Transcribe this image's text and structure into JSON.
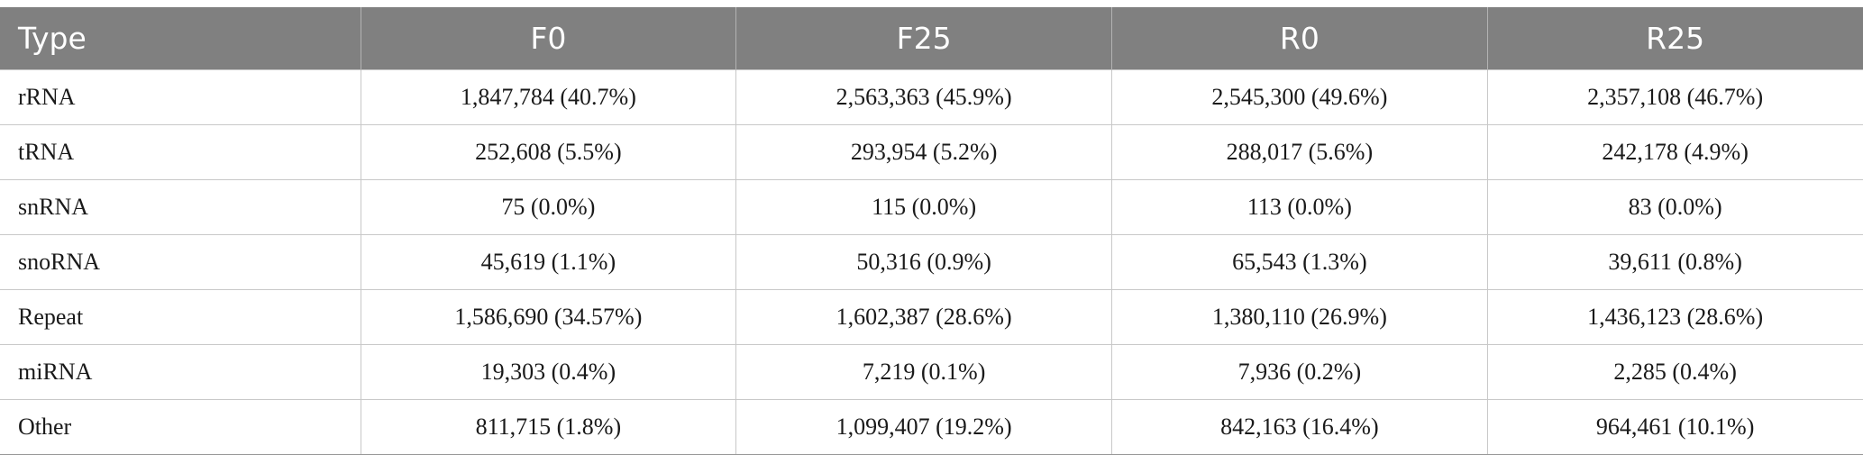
{
  "table": {
    "headers": [
      "Type",
      "F0",
      "F25",
      "R0",
      "R25"
    ],
    "rows": [
      [
        "rRNA",
        "1,847,784 (40.7%)",
        "2,563,363 (45.9%)",
        "2,545,300 (49.6%)",
        "2,357,108 (46.7%)"
      ],
      [
        "tRNA",
        "252,608 (5.5%)",
        "293,954 (5.2%)",
        "288,017 (5.6%)",
        "242,178 (4.9%)"
      ],
      [
        "snRNA",
        "75 (0.0%)",
        "115 (0.0%)",
        "113 (0.0%)",
        "83 (0.0%)"
      ],
      [
        "snoRNA",
        "45,619 (1.1%)",
        "50,316 (0.9%)",
        "65,543 (1.3%)",
        "39,611 (0.8%)"
      ],
      [
        "Repeat",
        "1,586,690 (34.57%)",
        "1,602,387 (28.6%)",
        "1,380,110 (26.9%)",
        "1,436,123 (28.6%)"
      ],
      [
        "miRNA",
        "19,303 (0.4%)",
        "7,219 (0.1%)",
        "7,936 (0.2%)",
        "2,285 (0.4%)"
      ],
      [
        "Other",
        "811,715 (1.8%)",
        "1,099,407 (19.2%)",
        "842,163 (16.4%)",
        "964,461 (10.1%)"
      ]
    ]
  },
  "colors": {
    "header_bg": "#808080",
    "header_text": "#ffffff",
    "grid": "#c8c8c8"
  }
}
